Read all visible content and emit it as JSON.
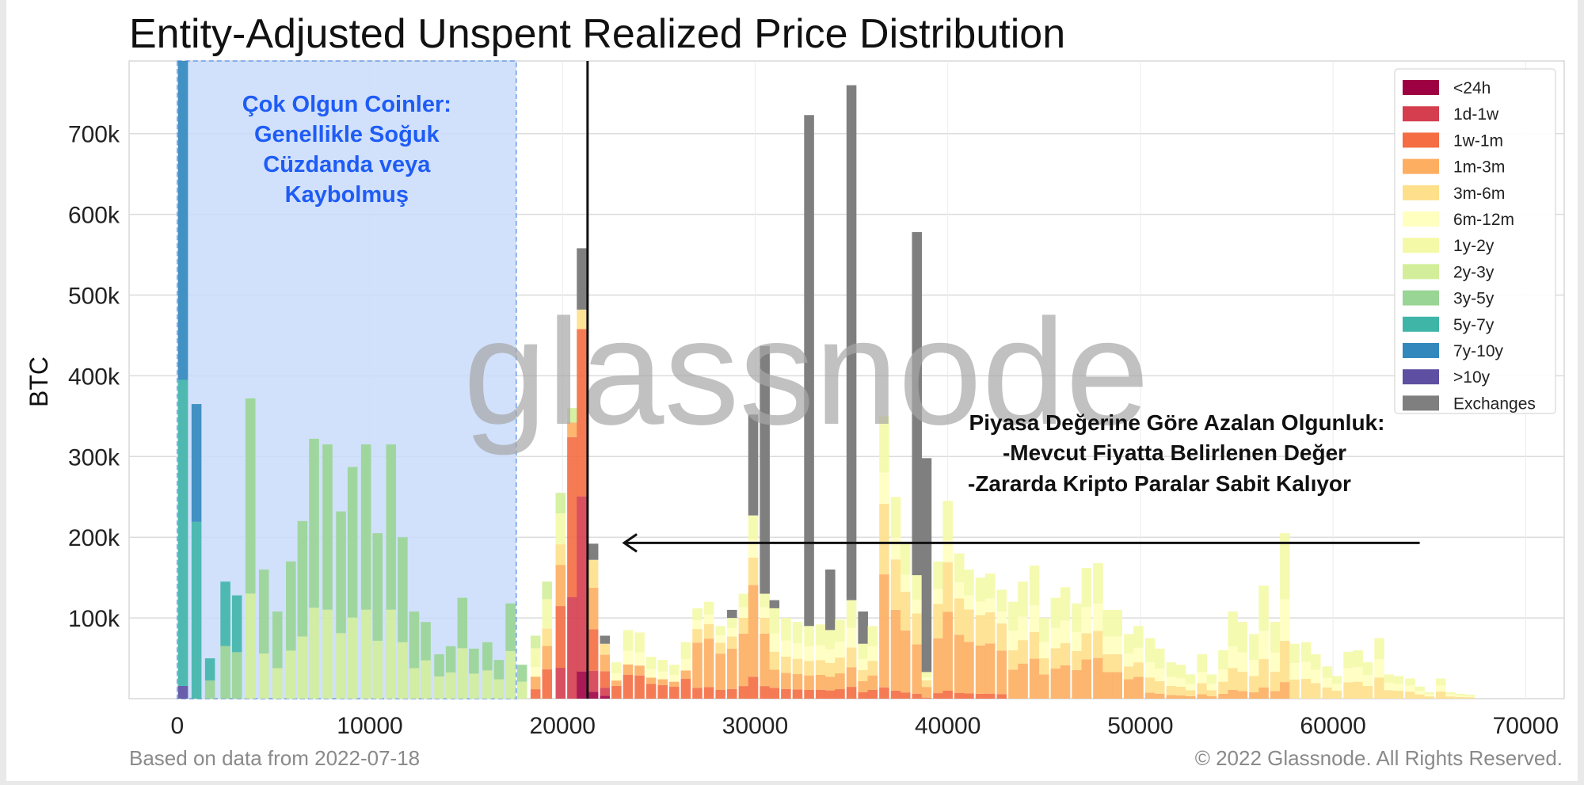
{
  "chart_data": {
    "type": "bar",
    "stacked": true,
    "title": "Entity-Adjusted Unspent Realized Price Distribution",
    "xlabel": "",
    "ylabel": "BTC",
    "xlim": [
      -2500,
      72000
    ],
    "ylim": [
      0,
      790000
    ],
    "xticks": [
      0,
      10000,
      20000,
      30000,
      40000,
      50000,
      60000,
      70000
    ],
    "xtick_labels": [
      "0",
      "10000",
      "20000",
      "30000",
      "40000",
      "50000",
      "60000",
      "70000"
    ],
    "yticks": [
      100000,
      200000,
      300000,
      400000,
      500000,
      600000,
      700000
    ],
    "ytick_labels": [
      "100k",
      "200k",
      "300k",
      "400k",
      "500k",
      "600k",
      "700k"
    ],
    "grid": true,
    "legend_position": "top-right",
    "watermark": "glassnode",
    "footer_left": "Based on data from 2022-07-18",
    "footer_right": "© 2022 Glassnode. All Rights Reserved.",
    "bin_width": 600,
    "current_price_line_x": 21300,
    "series": [
      {
        "name": "<24h",
        "color": "#9e0142"
      },
      {
        "name": "1d-1w",
        "color": "#d53e4f"
      },
      {
        "name": "1w-1m",
        "color": "#f46d43"
      },
      {
        "name": "1m-3m",
        "color": "#fdae61"
      },
      {
        "name": "3m-6m",
        "color": "#fee08b"
      },
      {
        "name": "6m-12m",
        "color": "#ffffbf"
      },
      {
        "name": "1y-2y",
        "color": "#f4f9a8"
      },
      {
        "name": "2y-3y",
        "color": "#d2ee9a"
      },
      {
        "name": "3y-5y",
        "color": "#99d594"
      },
      {
        "name": "5y-7y",
        "color": "#3fb5a8"
      },
      {
        "name": "7y-10y",
        "color": "#3288bd"
      },
      {
        "name": ">10y",
        "color": "#5e4fa2"
      },
      {
        "name": "Exchanges",
        "color": "#7f7f7f"
      }
    ],
    "bars": [
      {
        "x": 300,
        "total": 790000,
        "exchanges": 0
      },
      {
        "x": 1000,
        "total": 365000,
        "exchanges": 0
      },
      {
        "x": 1700,
        "total": 50000,
        "exchanges": 0
      },
      {
        "x": 2500,
        "total": 145000,
        "exchanges": 0
      },
      {
        "x": 3100,
        "total": 128000,
        "exchanges": 0
      },
      {
        "x": 3800,
        "total": 372000,
        "exchanges": 0
      },
      {
        "x": 4500,
        "total": 160000,
        "exchanges": 0
      },
      {
        "x": 5200,
        "total": 108000,
        "exchanges": 0
      },
      {
        "x": 5900,
        "total": 170000,
        "exchanges": 0
      },
      {
        "x": 6500,
        "total": 220000,
        "exchanges": 0
      },
      {
        "x": 7100,
        "total": 322000,
        "exchanges": 0
      },
      {
        "x": 7800,
        "total": 315000,
        "exchanges": 0
      },
      {
        "x": 8500,
        "total": 232000,
        "exchanges": 0
      },
      {
        "x": 9100,
        "total": 287000,
        "exchanges": 0
      },
      {
        "x": 9800,
        "total": 315000,
        "exchanges": 0
      },
      {
        "x": 10400,
        "total": 205000,
        "exchanges": 0
      },
      {
        "x": 11100,
        "total": 315000,
        "exchanges": 0
      },
      {
        "x": 11700,
        "total": 200000,
        "exchanges": 0
      },
      {
        "x": 12300,
        "total": 108000,
        "exchanges": 0
      },
      {
        "x": 12900,
        "total": 95000,
        "exchanges": 0
      },
      {
        "x": 13600,
        "total": 55000,
        "exchanges": 0
      },
      {
        "x": 14200,
        "total": 65000,
        "exchanges": 0
      },
      {
        "x": 14800,
        "total": 125000,
        "exchanges": 0
      },
      {
        "x": 15400,
        "total": 62000,
        "exchanges": 0
      },
      {
        "x": 16100,
        "total": 70000,
        "exchanges": 0
      },
      {
        "x": 16700,
        "total": 48000,
        "exchanges": 0
      },
      {
        "x": 17300,
        "total": 118000,
        "exchanges": 0
      },
      {
        "x": 17900,
        "total": 42000,
        "exchanges": 0
      },
      {
        "x": 18600,
        "total": 78000,
        "exchanges": 0
      },
      {
        "x": 19200,
        "total": 145000,
        "exchanges": 0
      },
      {
        "x": 19900,
        "total": 255000,
        "exchanges": 0
      },
      {
        "x": 20500,
        "total": 360000,
        "exchanges": 0
      },
      {
        "x": 21000,
        "total": 558000,
        "exchanges": 76000
      },
      {
        "x": 21600,
        "total": 192000,
        "exchanges": 20000
      },
      {
        "x": 22200,
        "total": 78000,
        "exchanges": 10000
      },
      {
        "x": 22800,
        "total": 45000,
        "exchanges": 0
      },
      {
        "x": 23400,
        "total": 85000,
        "exchanges": 0
      },
      {
        "x": 24000,
        "total": 82000,
        "exchanges": 0
      },
      {
        "x": 24600,
        "total": 52000,
        "exchanges": 0
      },
      {
        "x": 25200,
        "total": 48000,
        "exchanges": 0
      },
      {
        "x": 25800,
        "total": 42000,
        "exchanges": 0
      },
      {
        "x": 26400,
        "total": 70000,
        "exchanges": 0
      },
      {
        "x": 27000,
        "total": 112000,
        "exchanges": 0
      },
      {
        "x": 27600,
        "total": 120000,
        "exchanges": 0
      },
      {
        "x": 28200,
        "total": 90000,
        "exchanges": 0
      },
      {
        "x": 28800,
        "total": 110000,
        "exchanges": 10000
      },
      {
        "x": 29400,
        "total": 130000,
        "exchanges": 0
      },
      {
        "x": 29900,
        "total": 352000,
        "exchanges": 125000
      },
      {
        "x": 30500,
        "total": 437000,
        "exchanges": 307000
      },
      {
        "x": 31000,
        "total": 122000,
        "exchanges": 10000
      },
      {
        "x": 31600,
        "total": 100000,
        "exchanges": 0
      },
      {
        "x": 32200,
        "total": 95000,
        "exchanges": 0
      },
      {
        "x": 32800,
        "total": 723000,
        "exchanges": 633000
      },
      {
        "x": 33400,
        "total": 92000,
        "exchanges": 0
      },
      {
        "x": 33900,
        "total": 160000,
        "exchanges": 75000
      },
      {
        "x": 34400,
        "total": 98000,
        "exchanges": 0
      },
      {
        "x": 35000,
        "total": 760000,
        "exchanges": 638000
      },
      {
        "x": 35600,
        "total": 108000,
        "exchanges": 40000
      },
      {
        "x": 36100,
        "total": 90000,
        "exchanges": 0
      },
      {
        "x": 36700,
        "total": 350000,
        "exchanges": 0
      },
      {
        "x": 37300,
        "total": 250000,
        "exchanges": 0
      },
      {
        "x": 37800,
        "total": 192000,
        "exchanges": 0
      },
      {
        "x": 38400,
        "total": 578000,
        "exchanges": 425000
      },
      {
        "x": 38900,
        "total": 298000,
        "exchanges": 265000
      },
      {
        "x": 39500,
        "total": 170000,
        "exchanges": 0
      },
      {
        "x": 40000,
        "total": 245000,
        "exchanges": 0
      },
      {
        "x": 40600,
        "total": 180000,
        "exchanges": 0
      },
      {
        "x": 41100,
        "total": 160000,
        "exchanges": 0
      },
      {
        "x": 41700,
        "total": 150000,
        "exchanges": 0
      },
      {
        "x": 42200,
        "total": 155000,
        "exchanges": 0
      },
      {
        "x": 42800,
        "total": 135000,
        "exchanges": 0
      },
      {
        "x": 43400,
        "total": 120000,
        "exchanges": 0
      },
      {
        "x": 43900,
        "total": 145000,
        "exchanges": 0
      },
      {
        "x": 44500,
        "total": 165000,
        "exchanges": 0
      },
      {
        "x": 45000,
        "total": 100000,
        "exchanges": 0
      },
      {
        "x": 45600,
        "total": 125000,
        "exchanges": 0
      },
      {
        "x": 46100,
        "total": 138000,
        "exchanges": 0
      },
      {
        "x": 46700,
        "total": 118000,
        "exchanges": 0
      },
      {
        "x": 47200,
        "total": 162000,
        "exchanges": 0
      },
      {
        "x": 47800,
        "total": 168000,
        "exchanges": 0
      },
      {
        "x": 48300,
        "total": 110000,
        "exchanges": 0
      },
      {
        "x": 48800,
        "total": 110000,
        "exchanges": 0
      },
      {
        "x": 49400,
        "total": 80000,
        "exchanges": 0
      },
      {
        "x": 49900,
        "total": 90000,
        "exchanges": 0
      },
      {
        "x": 50500,
        "total": 75000,
        "exchanges": 0
      },
      {
        "x": 51000,
        "total": 62000,
        "exchanges": 0
      },
      {
        "x": 51600,
        "total": 45000,
        "exchanges": 0
      },
      {
        "x": 52100,
        "total": 42000,
        "exchanges": 0
      },
      {
        "x": 52600,
        "total": 30000,
        "exchanges": 0
      },
      {
        "x": 53200,
        "total": 55000,
        "exchanges": 0
      },
      {
        "x": 53700,
        "total": 30000,
        "exchanges": 0
      },
      {
        "x": 54300,
        "total": 60000,
        "exchanges": 0
      },
      {
        "x": 54800,
        "total": 108000,
        "exchanges": 0
      },
      {
        "x": 55300,
        "total": 95000,
        "exchanges": 0
      },
      {
        "x": 55900,
        "total": 80000,
        "exchanges": 0
      },
      {
        "x": 56400,
        "total": 140000,
        "exchanges": 0
      },
      {
        "x": 57000,
        "total": 95000,
        "exchanges": 0
      },
      {
        "x": 57500,
        "total": 205000,
        "exchanges": 0
      },
      {
        "x": 58000,
        "total": 68000,
        "exchanges": 0
      },
      {
        "x": 58600,
        "total": 70000,
        "exchanges": 0
      },
      {
        "x": 59100,
        "total": 55000,
        "exchanges": 0
      },
      {
        "x": 59700,
        "total": 40000,
        "exchanges": 0
      },
      {
        "x": 60200,
        "total": 28000,
        "exchanges": 0
      },
      {
        "x": 60800,
        "total": 58000,
        "exchanges": 0
      },
      {
        "x": 61300,
        "total": 60000,
        "exchanges": 0
      },
      {
        "x": 61800,
        "total": 45000,
        "exchanges": 0
      },
      {
        "x": 62400,
        "total": 75000,
        "exchanges": 0
      },
      {
        "x": 62900,
        "total": 30000,
        "exchanges": 0
      },
      {
        "x": 63400,
        "total": 28000,
        "exchanges": 0
      },
      {
        "x": 64000,
        "total": 25000,
        "exchanges": 0
      },
      {
        "x": 64500,
        "total": 15000,
        "exchanges": 0
      },
      {
        "x": 65000,
        "total": 8000,
        "exchanges": 0
      },
      {
        "x": 65600,
        "total": 25000,
        "exchanges": 0
      },
      {
        "x": 66100,
        "total": 8000,
        "exchanges": 0
      },
      {
        "x": 66600,
        "total": 6000,
        "exchanges": 0
      },
      {
        "x": 67100,
        "total": 5000,
        "exchanges": 0
      }
    ]
  },
  "annotations": {
    "mature_region": {
      "x_from": 0,
      "x_to": 17600,
      "lines": [
        "Çok Olgun Coinler:",
        "Genellikle Soğuk",
        "Cüzdanda veya",
        "Kaybolmuş"
      ],
      "color": "#1f5cf5",
      "fill": "#c9dcfa"
    },
    "declining_maturity": {
      "lines": [
        "Piyasa Değerine Göre Azalan Olgunluk:",
        "-Mevcut Fiyatta Belirlenen Değer",
        "-Zararda Kripto Paralar Sabit Kalıyor"
      ],
      "arrow_from_x": 64500,
      "arrow_to_x": 23200,
      "arrow_y": 193000
    }
  }
}
